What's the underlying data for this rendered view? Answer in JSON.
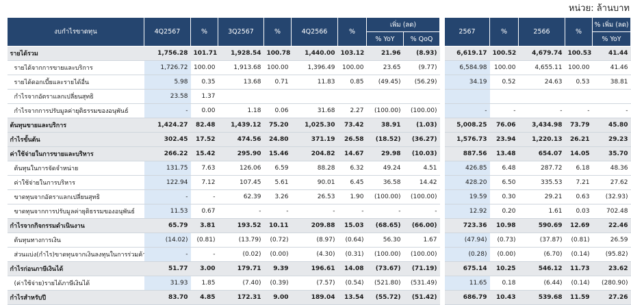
{
  "unit_note": "หน่วย: ล้านบาท",
  "left_header": {
    "label": "งบกำไรขาดทุน",
    "cols": [
      "4Q2567",
      "%",
      "3Q2567",
      "%",
      "4Q2566",
      "%"
    ],
    "change_group": "เพิ่ม (ลด)",
    "change_cols": [
      "% YoY",
      "% QoQ"
    ]
  },
  "right_header": {
    "cols": [
      "2567",
      "%",
      "2566",
      "%"
    ],
    "change_group": "% เพิ่ม (ลด)",
    "change_col": "% YoY"
  },
  "rows": [
    {
      "label": "รายได้รวม",
      "type": "major",
      "left": [
        "1,756.28",
        "101.71",
        "1,928.54",
        "100.78",
        "1,440.00",
        "103.12",
        "21.96",
        "(8.93)"
      ],
      "right": [
        "6,619.17",
        "100.52",
        "4,679.74",
        "100.53",
        "41.44"
      ]
    },
    {
      "label": "รายได้จากการขายและบริการ",
      "type": "minor",
      "left": [
        "1,726.72",
        "100.00",
        "1,913.68",
        "100.00",
        "1,396.49",
        "100.00",
        "23.65",
        "(9.77)"
      ],
      "right": [
        "6,584.98",
        "100.00",
        "4,655.11",
        "100.00",
        "41.46"
      ]
    },
    {
      "label": "รายได้ดอกเบี้ยและรายได้อื่น",
      "type": "minor",
      "left": [
        "5.98",
        "0.35",
        "13.68",
        "0.71",
        "11.83",
        "0.85",
        "(49.45)",
        "(56.29)"
      ],
      "right": [
        "34.19",
        "0.52",
        "24.63",
        "0.53",
        "38.81"
      ]
    },
    {
      "label": "กำไรจากอัตราแลกเปลี่ยนสุทธิ",
      "type": "minor",
      "left": [
        "23.58",
        "1.37",
        "",
        "",
        "",
        "",
        "",
        ""
      ],
      "right": [
        "",
        "",
        "",
        "",
        ""
      ]
    },
    {
      "label": "กำไรจากการปรับมูลค่ายุติธรรมของอนุพันธ์",
      "type": "minor",
      "left": [
        "-",
        "0.00",
        "1.18",
        "0.06",
        "31.68",
        "2.27",
        "(100.00)",
        "(100.00)"
      ],
      "right": [
        "-",
        "-",
        "-",
        "-",
        "-"
      ]
    },
    {
      "label": "ต้นทุนขายและบริการ",
      "type": "major",
      "left": [
        "1,424.27",
        "82.48",
        "1,439.12",
        "75.20",
        "1,025.30",
        "73.42",
        "38.91",
        "(1.03)"
      ],
      "right": [
        "5,008.25",
        "76.06",
        "3,434.98",
        "73.79",
        "45.80"
      ]
    },
    {
      "label": "กำไรขั้นต้น",
      "type": "major",
      "left": [
        "302.45",
        "17.52",
        "474.56",
        "24.80",
        "371.19",
        "26.58",
        "(18.52)",
        "(36.27)"
      ],
      "right": [
        "1,576.73",
        "23.94",
        "1,220.13",
        "26.21",
        "29.23"
      ]
    },
    {
      "label": "ค่าใช้จ่ายในการขายและบริหาร",
      "type": "major",
      "left": [
        "266.22",
        "15.42",
        "295.90",
        "15.46",
        "204.82",
        "14.67",
        "29.98",
        "(10.03)"
      ],
      "right": [
        "887.56",
        "13.48",
        "654.07",
        "14.05",
        "35.70"
      ]
    },
    {
      "label": "ต้นทุนในการจัดจำหน่าย",
      "type": "minor",
      "left": [
        "131.75",
        "7.63",
        "126.06",
        "6.59",
        "88.28",
        "6.32",
        "49.24",
        "4.51"
      ],
      "right": [
        "426.85",
        "6.48",
        "287.72",
        "6.18",
        "48.36"
      ]
    },
    {
      "label": "ค่าใช้จ่ายในการบริหาร",
      "type": "minor",
      "left": [
        "122.94",
        "7.12",
        "107.45",
        "5.61",
        "90.01",
        "6.45",
        "36.58",
        "14.42"
      ],
      "right": [
        "428.20",
        "6.50",
        "335.53",
        "7.21",
        "27.62"
      ]
    },
    {
      "label": "ขาดทุนจากอัตราแลกเปลี่ยนสุทธิ",
      "type": "minor",
      "left": [
        "-",
        "-",
        "62.39",
        "3.26",
        "26.53",
        "1.90",
        "(100.00)",
        "(100.00)"
      ],
      "right": [
        "19.59",
        "0.30",
        "29.21",
        "0.63",
        "(32.93)"
      ]
    },
    {
      "label": "ขาดทุนจากการปรับมูลค่ายุติธรรมของอนุพันธ์",
      "type": "minor",
      "left": [
        "11.53",
        "0.67",
        "-",
        "-",
        "-",
        "-",
        "-",
        "-"
      ],
      "right": [
        "12.92",
        "0.20",
        "1.61",
        "0.03",
        "702.48"
      ]
    },
    {
      "label": "กำไรจากกิจกรรมดำเนินงาน",
      "type": "major",
      "left": [
        "65.79",
        "3.81",
        "193.52",
        "10.11",
        "209.88",
        "15.03",
        "(68.65)",
        "(66.00)"
      ],
      "right": [
        "723.36",
        "10.98",
        "590.69",
        "12.69",
        "22.46"
      ]
    },
    {
      "label": "ต้นทุนทางการเงิน",
      "type": "minor",
      "left": [
        "(14.02)",
        "(0.81)",
        "(13.79)",
        "(0.72)",
        "(8.97)",
        "(0.64)",
        "56.30",
        "1.67"
      ],
      "right": [
        "(47.94)",
        "(0.73)",
        "(37.87)",
        "(0.81)",
        "26.59"
      ]
    },
    {
      "label": "ส่วนแบ่ง(กำไร)ขาดทุนจากเงินลงทุนในการร่วมค้า",
      "type": "minor",
      "left": [
        "-",
        "-",
        "(0.02)",
        "(0.00)",
        "(4.30)",
        "(0.31)",
        "(100.00)",
        "(100.00)"
      ],
      "right": [
        "(0.28)",
        "(0.00)",
        "(6.70)",
        "(0.14)",
        "(95.82)"
      ]
    },
    {
      "label": "กำไรก่อนภาษีเงินได้",
      "type": "major",
      "left": [
        "51.77",
        "3.00",
        "179.71",
        "9.39",
        "196.61",
        "14.08",
        "(73.67)",
        "(71.19)"
      ],
      "right": [
        "675.14",
        "10.25",
        "546.12",
        "11.73",
        "23.62"
      ]
    },
    {
      "label": "(ค่าใช้จ่าย)รายได้ภาษีเงินได้",
      "type": "minor",
      "left": [
        "31.93",
        "1.85",
        "(7.40)",
        "(0.39)",
        "(7.57)",
        "(0.54)",
        "(521.80)",
        "(531.49)"
      ],
      "right": [
        "11.65",
        "0.18",
        "(6.44)",
        "(0.14)",
        "(280.90)"
      ]
    },
    {
      "label": "กำไรสำหรับปี",
      "type": "major",
      "left": [
        "83.70",
        "4.85",
        "172.31",
        "9.00",
        "189.04",
        "13.54",
        "(55.72)",
        "(51.42)"
      ],
      "right": [
        "686.79",
        "10.43",
        "539.68",
        "11.59",
        "27.26"
      ]
    }
  ]
}
